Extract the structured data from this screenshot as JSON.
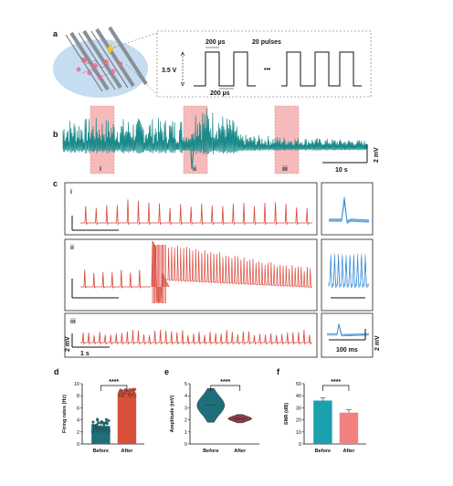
{
  "panel_labels": {
    "a": "a",
    "b": "b",
    "c": "c",
    "d": "d",
    "e": "e",
    "f": "f"
  },
  "panel_a": {
    "pulse_width_top": "200 µs",
    "pulse_count": "20 pulses",
    "voltage": "3.5 V",
    "ellipsis": "•••",
    "pulse_width_bottom": "200 µs"
  },
  "panel_b": {
    "region_labels": [
      "i",
      "ii",
      "iii"
    ],
    "scale_time": "10 s",
    "scale_voltage": "2 mV"
  },
  "panel_c": {
    "row_labels": [
      "i",
      "ii",
      "iii"
    ],
    "scale_voltage": "2 mV",
    "scale_time_long": "1 s",
    "scale_time_short": "100 ms",
    "scale_voltage_zoom": "2 mV"
  },
  "chart_data": [
    {
      "type": "bar",
      "panel": "d",
      "categories": [
        "Before",
        "After"
      ],
      "values": [
        3.0,
        8.5
      ],
      "ylabel": "Firing rates (Hz)",
      "ylim": [
        0,
        10
      ],
      "yticks": [
        0,
        2,
        4,
        6,
        8,
        10
      ],
      "significance": "****",
      "colors": [
        "#1f6f7a",
        "#d9503a"
      ]
    },
    {
      "type": "violin",
      "panel": "e",
      "categories": [
        "Before",
        "After"
      ],
      "values": [
        3.2,
        2.1
      ],
      "ylabel": "Amplitude (mV)",
      "ylim": [
        0,
        5
      ],
      "yticks": [
        0,
        1,
        2,
        3,
        4,
        5
      ],
      "significance": "****",
      "colors": [
        "#1f6f7a",
        "#8a3a48"
      ]
    },
    {
      "type": "bar",
      "panel": "f",
      "categories": [
        "Before",
        "After"
      ],
      "values": [
        36,
        26
      ],
      "ylabel": "SNR (dB)",
      "ylim": [
        0,
        50
      ],
      "yticks": [
        0,
        10,
        20,
        30,
        40,
        50
      ],
      "significance": "****",
      "colors": [
        "#1ba0ad",
        "#f28080"
      ]
    }
  ],
  "colors": {
    "teal": "#1a8a8a",
    "red_trace": "#d9473a",
    "blue_trace": "#3a8bd6",
    "highlight": "#f4a3a3"
  }
}
